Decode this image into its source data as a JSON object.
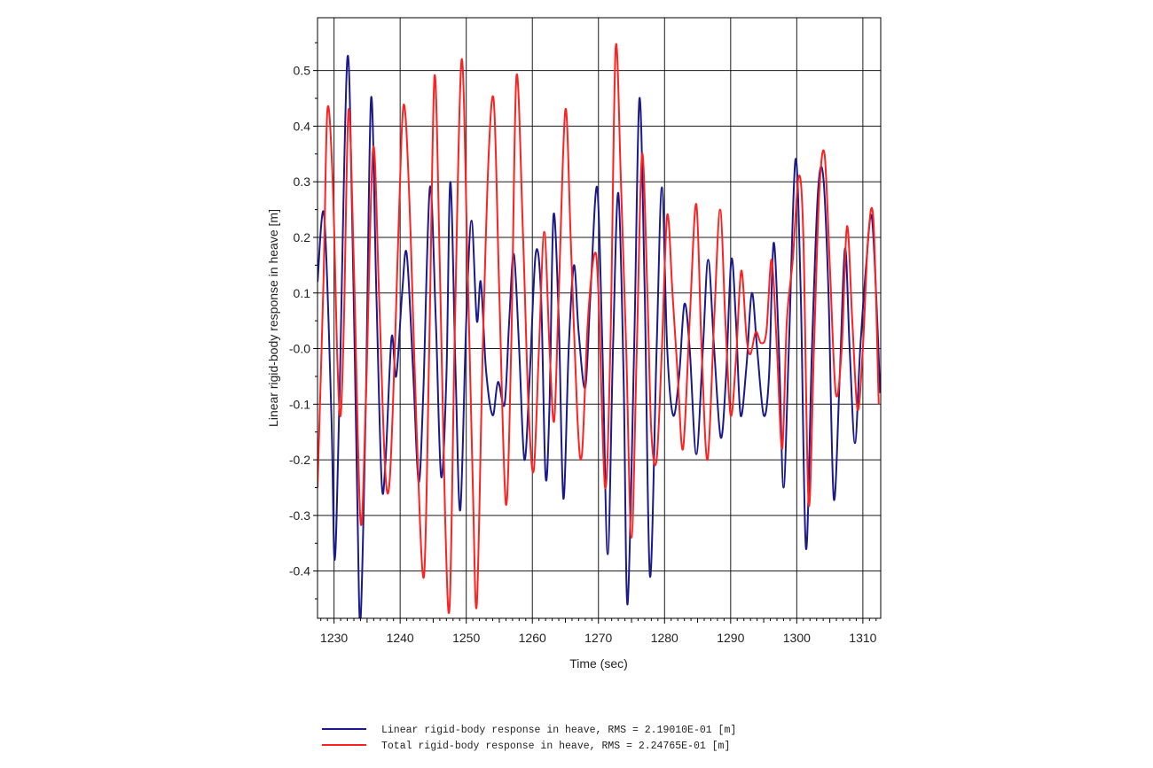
{
  "chart_data": {
    "type": "line",
    "xlabel": "Time (sec)",
    "ylabel": "Linear rigid-body response in heave [m]",
    "xlim": [
      1227.5,
      1312.7
    ],
    "ylim": [
      -0.485,
      0.595
    ],
    "x_ticks": [
      1230,
      1240,
      1250,
      1260,
      1270,
      1280,
      1290,
      1300,
      1310
    ],
    "y_ticks": [
      0.5,
      0.4,
      0.3,
      0.2,
      0.1,
      -0.0,
      -0.1,
      -0.2,
      -0.3,
      -0.4
    ],
    "y_tick_labels": [
      "0.5",
      "0.4",
      "0.3",
      "0.2",
      "0.1",
      "-0.0",
      "-0.1",
      "-0.2",
      "-0.3",
      "-0.4"
    ],
    "grid": true,
    "legend_position": "bottom",
    "series": [
      {
        "name": "Linear rigid-body response in heave, RMS = 2.19010E-01 [m]",
        "color": "#1a1a8c",
        "points": [
          [
            1227.5,
            0.12
          ],
          [
            1228.5,
            0.24
          ],
          [
            1229.6,
            -0.12
          ],
          [
            1230.1,
            -0.38
          ],
          [
            1230.8,
            -0.1
          ],
          [
            1232.0,
            0.52
          ],
          [
            1232.8,
            0.2
          ],
          [
            1233.5,
            -0.26
          ],
          [
            1234.0,
            -0.49
          ],
          [
            1234.8,
            -0.1
          ],
          [
            1235.6,
            0.45
          ],
          [
            1236.4,
            0.1
          ],
          [
            1237.2,
            -0.24
          ],
          [
            1237.8,
            -0.2
          ],
          [
            1238.7,
            0.02
          ],
          [
            1239.4,
            -0.05
          ],
          [
            1240.3,
            0.1
          ],
          [
            1241.0,
            0.17
          ],
          [
            1242.0,
            -0.05
          ],
          [
            1242.8,
            -0.24
          ],
          [
            1243.5,
            -0.08
          ],
          [
            1244.5,
            0.29
          ],
          [
            1245.4,
            0.05
          ],
          [
            1246.2,
            -0.23
          ],
          [
            1247.0,
            -0.05
          ],
          [
            1247.6,
            0.3
          ],
          [
            1248.4,
            -0.05
          ],
          [
            1249.1,
            -0.29
          ],
          [
            1250.0,
            0.05
          ],
          [
            1250.8,
            0.23
          ],
          [
            1251.6,
            0.05
          ],
          [
            1252.2,
            0.12
          ],
          [
            1253.0,
            -0.04
          ],
          [
            1254.0,
            -0.12
          ],
          [
            1254.8,
            -0.06
          ],
          [
            1255.8,
            -0.1
          ],
          [
            1256.5,
            0.05
          ],
          [
            1257.2,
            0.17
          ],
          [
            1258.0,
            0.0
          ],
          [
            1258.8,
            -0.2
          ],
          [
            1259.6,
            -0.05
          ],
          [
            1260.5,
            0.17
          ],
          [
            1261.3,
            0.1
          ],
          [
            1262.0,
            -0.23
          ],
          [
            1262.6,
            -0.1
          ],
          [
            1263.2,
            0.24
          ],
          [
            1264.0,
            0.05
          ],
          [
            1264.7,
            -0.27
          ],
          [
            1265.5,
            0.0
          ],
          [
            1266.3,
            0.15
          ],
          [
            1267.0,
            0.03
          ],
          [
            1268.0,
            -0.07
          ],
          [
            1268.8,
            0.1
          ],
          [
            1269.8,
            0.29
          ],
          [
            1270.6,
            0.0
          ],
          [
            1271.4,
            -0.37
          ],
          [
            1272.2,
            0.0
          ],
          [
            1273.0,
            0.28
          ],
          [
            1273.8,
            -0.05
          ],
          [
            1274.4,
            -0.46
          ],
          [
            1275.4,
            0.0
          ],
          [
            1276.2,
            0.45
          ],
          [
            1277.0,
            0.1
          ],
          [
            1277.8,
            -0.41
          ],
          [
            1278.8,
            0.0
          ],
          [
            1279.6,
            0.29
          ],
          [
            1280.4,
            0.0
          ],
          [
            1281.3,
            -0.12
          ],
          [
            1282.2,
            -0.05
          ],
          [
            1283.0,
            0.08
          ],
          [
            1283.8,
            0.0
          ],
          [
            1284.8,
            -0.19
          ],
          [
            1285.8,
            0.0
          ],
          [
            1286.6,
            0.16
          ],
          [
            1287.5,
            0.0
          ],
          [
            1288.5,
            -0.16
          ],
          [
            1289.3,
            -0.05
          ],
          [
            1290.1,
            0.16
          ],
          [
            1290.8,
            0.05
          ],
          [
            1291.5,
            -0.12
          ],
          [
            1292.4,
            -0.03
          ],
          [
            1293.2,
            0.1
          ],
          [
            1294.0,
            0.0
          ],
          [
            1295.0,
            -0.12
          ],
          [
            1295.8,
            -0.05
          ],
          [
            1296.5,
            0.19
          ],
          [
            1297.3,
            0.0
          ],
          [
            1298.0,
            -0.25
          ],
          [
            1298.8,
            0.0
          ],
          [
            1299.8,
            0.34
          ],
          [
            1300.6,
            0.1
          ],
          [
            1301.4,
            -0.36
          ],
          [
            1302.3,
            0.0
          ],
          [
            1303.2,
            0.28
          ],
          [
            1304.0,
            0.31
          ],
          [
            1304.8,
            0.1
          ],
          [
            1305.6,
            -0.27
          ],
          [
            1306.5,
            -0.05
          ],
          [
            1307.3,
            0.18
          ],
          [
            1308.0,
            0.0
          ],
          [
            1308.8,
            -0.17
          ],
          [
            1309.6,
            0.0
          ],
          [
            1310.5,
            0.15
          ],
          [
            1311.3,
            0.24
          ],
          [
            1312.0,
            0.1
          ],
          [
            1312.6,
            -0.08
          ]
        ]
      },
      {
        "name": "Total rigid-body response in heave, RMS = 2.24765E-01 [m]",
        "color": "#ff2020",
        "points": [
          [
            1227.5,
            -0.25
          ],
          [
            1228.4,
            0.12
          ],
          [
            1229.0,
            0.43
          ],
          [
            1229.8,
            0.3
          ],
          [
            1230.5,
            -0.02
          ],
          [
            1231.0,
            -0.12
          ],
          [
            1231.5,
            0.05
          ],
          [
            1232.2,
            0.43
          ],
          [
            1233.0,
            0.15
          ],
          [
            1234.0,
            -0.31
          ],
          [
            1234.8,
            -0.1
          ],
          [
            1235.9,
            0.36
          ],
          [
            1236.8,
            0.1
          ],
          [
            1237.7,
            -0.21
          ],
          [
            1238.4,
            -0.24
          ],
          [
            1239.2,
            0.0
          ],
          [
            1240.2,
            0.38
          ],
          [
            1240.8,
            0.42
          ],
          [
            1241.6,
            0.2
          ],
          [
            1242.5,
            -0.15
          ],
          [
            1243.6,
            -0.41
          ],
          [
            1244.4,
            0.0
          ],
          [
            1245.2,
            0.49
          ],
          [
            1246.0,
            0.15
          ],
          [
            1246.8,
            -0.3
          ],
          [
            1247.5,
            -0.46
          ],
          [
            1248.3,
            0.05
          ],
          [
            1249.3,
            0.52
          ],
          [
            1250.2,
            0.15
          ],
          [
            1251.0,
            -0.25
          ],
          [
            1251.6,
            -0.46
          ],
          [
            1252.5,
            0.0
          ],
          [
            1253.4,
            0.35
          ],
          [
            1254.2,
            0.44
          ],
          [
            1255.0,
            0.1
          ],
          [
            1256.0,
            -0.28
          ],
          [
            1256.8,
            0.0
          ],
          [
            1257.6,
            0.49
          ],
          [
            1258.6,
            0.2
          ],
          [
            1259.4,
            -0.1
          ],
          [
            1260.2,
            -0.22
          ],
          [
            1261.0,
            0.0
          ],
          [
            1261.8,
            0.21
          ],
          [
            1262.6,
            0.0
          ],
          [
            1263.3,
            -0.13
          ],
          [
            1264.0,
            0.1
          ],
          [
            1265.0,
            0.43
          ],
          [
            1265.8,
            0.2
          ],
          [
            1266.8,
            -0.12
          ],
          [
            1267.5,
            -0.19
          ],
          [
            1268.4,
            0.05
          ],
          [
            1269.4,
            0.17
          ],
          [
            1270.0,
            0.1
          ],
          [
            1271.0,
            -0.25
          ],
          [
            1271.8,
            0.0
          ],
          [
            1272.6,
            0.54
          ],
          [
            1273.4,
            0.3
          ],
          [
            1274.2,
            0.0
          ],
          [
            1275.0,
            -0.34
          ],
          [
            1275.8,
            0.0
          ],
          [
            1276.6,
            0.35
          ],
          [
            1277.4,
            0.1
          ],
          [
            1278.0,
            -0.15
          ],
          [
            1278.8,
            -0.2
          ],
          [
            1279.6,
            0.0
          ],
          [
            1280.4,
            0.24
          ],
          [
            1281.2,
            0.1
          ],
          [
            1282.0,
            -0.05
          ],
          [
            1282.8,
            -0.18
          ],
          [
            1283.8,
            0.05
          ],
          [
            1284.8,
            0.26
          ],
          [
            1285.6,
            0.0
          ],
          [
            1286.5,
            -0.2
          ],
          [
            1287.5,
            0.05
          ],
          [
            1288.4,
            0.25
          ],
          [
            1289.2,
            0.05
          ],
          [
            1290.0,
            -0.12
          ],
          [
            1290.8,
            -0.02
          ],
          [
            1291.6,
            0.14
          ],
          [
            1292.4,
            0.02
          ],
          [
            1293.0,
            -0.01
          ],
          [
            1293.8,
            0.03
          ],
          [
            1294.6,
            0.01
          ],
          [
            1295.4,
            0.03
          ],
          [
            1296.2,
            0.16
          ],
          [
            1297.0,
            0.0
          ],
          [
            1297.8,
            -0.18
          ],
          [
            1298.5,
            0.05
          ],
          [
            1299.4,
            0.16
          ],
          [
            1300.3,
            0.31
          ],
          [
            1301.0,
            0.2
          ],
          [
            1301.8,
            -0.28
          ],
          [
            1302.6,
            0.0
          ],
          [
            1303.4,
            0.28
          ],
          [
            1304.2,
            0.35
          ],
          [
            1305.0,
            0.15
          ],
          [
            1305.9,
            -0.08
          ],
          [
            1306.8,
            0.0
          ],
          [
            1307.6,
            0.22
          ],
          [
            1308.4,
            0.05
          ],
          [
            1309.2,
            -0.11
          ],
          [
            1310.0,
            0.0
          ],
          [
            1310.8,
            0.2
          ],
          [
            1311.6,
            0.23
          ],
          [
            1312.4,
            -0.1
          ]
        ]
      }
    ]
  }
}
